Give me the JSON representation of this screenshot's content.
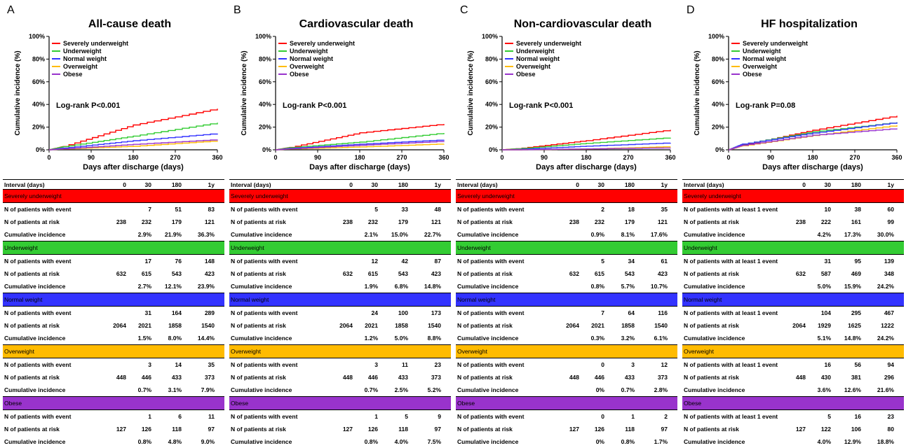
{
  "colors": {
    "severely_underweight": "#ff0000",
    "underweight": "#33cc33",
    "normal_weight": "#3333ff",
    "overweight": "#ffbb00",
    "obese": "#9933cc"
  },
  "table_headers": [
    "Interval (days)",
    "0",
    "30",
    "180",
    "1y"
  ],
  "row_labels": {
    "at_risk": "N of patients at risk",
    "cumulative": "Cumulative incidence"
  },
  "panels": [
    {
      "letter": "A",
      "title": "All-cause death",
      "logrank": "Log-rank P<0.001",
      "event_label": "N of patients with event",
      "groups": [
        {
          "name": "Severely underweight",
          "events": [
            "",
            "7",
            "51",
            "83"
          ],
          "at_risk": [
            "238",
            "232",
            "179",
            "121"
          ],
          "cumulative": [
            "",
            "2.9%",
            "21.9%",
            "36.3%"
          ]
        },
        {
          "name": "Underweight",
          "events": [
            "",
            "17",
            "76",
            "148"
          ],
          "at_risk": [
            "632",
            "615",
            "543",
            "423"
          ],
          "cumulative": [
            "",
            "2.7%",
            "12.1%",
            "23.9%"
          ]
        },
        {
          "name": "Normal weight",
          "events": [
            "",
            "31",
            "164",
            "289"
          ],
          "at_risk": [
            "2064",
            "2021",
            "1858",
            "1540"
          ],
          "cumulative": [
            "",
            "1.5%",
            "8.0%",
            "14.4%"
          ]
        },
        {
          "name": "Overweight",
          "events": [
            "",
            "3",
            "14",
            "35"
          ],
          "at_risk": [
            "448",
            "446",
            "433",
            "373"
          ],
          "cumulative": [
            "",
            "0.7%",
            "3.1%",
            "7.9%"
          ]
        },
        {
          "name": "Obese",
          "events": [
            "",
            "1",
            "6",
            "11"
          ],
          "at_risk": [
            "127",
            "126",
            "118",
            "97"
          ],
          "cumulative": [
            "",
            "0.8%",
            "4.8%",
            "9.0%"
          ]
        }
      ]
    },
    {
      "letter": "B",
      "title": "Cardiovascular death",
      "logrank": "Log-rank P<0.001",
      "event_label": "N of patients with event",
      "groups": [
        {
          "name": "Severely underweight",
          "events": [
            "",
            "5",
            "33",
            "48"
          ],
          "at_risk": [
            "238",
            "232",
            "179",
            "121"
          ],
          "cumulative": [
            "",
            "2.1%",
            "15.0%",
            "22.7%"
          ]
        },
        {
          "name": "Underweight",
          "events": [
            "",
            "12",
            "42",
            "87"
          ],
          "at_risk": [
            "632",
            "615",
            "543",
            "423"
          ],
          "cumulative": [
            "",
            "1.9%",
            "6.8%",
            "14.8%"
          ]
        },
        {
          "name": "Normal weight",
          "events": [
            "",
            "24",
            "100",
            "173"
          ],
          "at_risk": [
            "2064",
            "2021",
            "1858",
            "1540"
          ],
          "cumulative": [
            "",
            "1.2%",
            "5.0%",
            "8.8%"
          ]
        },
        {
          "name": "Overweight",
          "events": [
            "",
            "3",
            "11",
            "23"
          ],
          "at_risk": [
            "448",
            "446",
            "433",
            "373"
          ],
          "cumulative": [
            "",
            "0.7%",
            "2.5%",
            "5.2%"
          ]
        },
        {
          "name": "Obese",
          "events": [
            "",
            "1",
            "5",
            "9"
          ],
          "at_risk": [
            "127",
            "126",
            "118",
            "97"
          ],
          "cumulative": [
            "",
            "0.8%",
            "4.0%",
            "7.5%"
          ]
        }
      ]
    },
    {
      "letter": "C",
      "title": "Non-cardiovascular death",
      "logrank": "Log-rank P<0.001",
      "event_label": "N of patients with event",
      "groups": [
        {
          "name": "Severely underweight",
          "events": [
            "",
            "2",
            "18",
            "35"
          ],
          "at_risk": [
            "238",
            "232",
            "179",
            "121"
          ],
          "cumulative": [
            "",
            "0.9%",
            "8.1%",
            "17.6%"
          ]
        },
        {
          "name": "Underweight",
          "events": [
            "",
            "5",
            "34",
            "61"
          ],
          "at_risk": [
            "632",
            "615",
            "543",
            "423"
          ],
          "cumulative": [
            "",
            "0.8%",
            "5.7%",
            "10.7%"
          ]
        },
        {
          "name": "Normal weight",
          "events": [
            "",
            "7",
            "64",
            "116"
          ],
          "at_risk": [
            "2064",
            "2021",
            "1858",
            "1540"
          ],
          "cumulative": [
            "",
            "0.3%",
            "3.2%",
            "6.1%"
          ]
        },
        {
          "name": "Overweight",
          "events": [
            "",
            "0",
            "3",
            "12"
          ],
          "at_risk": [
            "448",
            "446",
            "433",
            "373"
          ],
          "cumulative": [
            "",
            "0%",
            "0.7%",
            "2.8%"
          ]
        },
        {
          "name": "Obese",
          "events": [
            "",
            "0",
            "1",
            "2"
          ],
          "at_risk": [
            "127",
            "126",
            "118",
            "97"
          ],
          "cumulative": [
            "",
            "0%",
            "0.8%",
            "1.7%"
          ]
        }
      ]
    },
    {
      "letter": "D",
      "title": "HF hospitalization",
      "logrank": "Log-rank P=0.08",
      "event_label": "N of patients with at least 1 event",
      "groups": [
        {
          "name": "Severely underweight",
          "events": [
            "",
            "10",
            "38",
            "60"
          ],
          "at_risk": [
            "238",
            "222",
            "161",
            "99"
          ],
          "cumulative": [
            "",
            "4.2%",
            "17.3%",
            "30.0%"
          ]
        },
        {
          "name": "Underweight",
          "events": [
            "",
            "31",
            "95",
            "139"
          ],
          "at_risk": [
            "632",
            "587",
            "469",
            "348"
          ],
          "cumulative": [
            "",
            "5.0%",
            "15.9%",
            "24.2%"
          ]
        },
        {
          "name": "Normal weight",
          "events": [
            "",
            "104",
            "295",
            "467"
          ],
          "at_risk": [
            "2064",
            "1929",
            "1625",
            "1222"
          ],
          "cumulative": [
            "",
            "5.1%",
            "14.8%",
            "24.2%"
          ]
        },
        {
          "name": "Overweight",
          "events": [
            "",
            "16",
            "56",
            "94"
          ],
          "at_risk": [
            "448",
            "430",
            "381",
            "296"
          ],
          "cumulative": [
            "",
            "3.6%",
            "12.6%",
            "21.6%"
          ]
        },
        {
          "name": "Obese",
          "events": [
            "",
            "5",
            "16",
            "23"
          ],
          "at_risk": [
            "127",
            "122",
            "106",
            "80"
          ],
          "cumulative": [
            "",
            "4.0%",
            "12.9%",
            "18.8%"
          ]
        }
      ]
    }
  ],
  "chart_data": [
    {
      "type": "line",
      "title": "All-cause death",
      "xlabel": "Days after discharge (days)",
      "ylabel": "Cumulative incidence (%)",
      "xlim": [
        0,
        360
      ],
      "ylim": [
        0,
        100
      ],
      "xticks": [
        "0",
        "90",
        "180",
        "270",
        "360"
      ],
      "yticks": [
        "0%",
        "20%",
        "40%",
        "60%",
        "80%",
        "100%"
      ],
      "legend_position": "top-left",
      "x": [
        0,
        30,
        180,
        360
      ],
      "series": [
        {
          "name": "Severely underweight",
          "values": [
            0,
            2.9,
            21.9,
            36.3
          ]
        },
        {
          "name": "Underweight",
          "values": [
            0,
            2.7,
            12.1,
            23.9
          ]
        },
        {
          "name": "Normal weight",
          "values": [
            0,
            1.5,
            8.0,
            14.4
          ]
        },
        {
          "name": "Overweight",
          "values": [
            0,
            0.7,
            3.1,
            7.9
          ]
        },
        {
          "name": "Obese",
          "values": [
            0,
            0.8,
            4.8,
            9.0
          ]
        }
      ]
    },
    {
      "type": "line",
      "title": "Cardiovascular death",
      "xlabel": "Days after discharge (days)",
      "ylabel": "Cumulative incidence (%)",
      "xlim": [
        0,
        360
      ],
      "ylim": [
        0,
        100
      ],
      "xticks": [
        "0",
        "90",
        "180",
        "270",
        "360"
      ],
      "yticks": [
        "0%",
        "20%",
        "40%",
        "60%",
        "80%",
        "100%"
      ],
      "legend_position": "top-left",
      "x": [
        0,
        30,
        180,
        360
      ],
      "series": [
        {
          "name": "Severely underweight",
          "values": [
            0,
            2.1,
            15.0,
            22.7
          ]
        },
        {
          "name": "Underweight",
          "values": [
            0,
            1.9,
            6.8,
            14.8
          ]
        },
        {
          "name": "Normal weight",
          "values": [
            0,
            1.2,
            5.0,
            8.8
          ]
        },
        {
          "name": "Overweight",
          "values": [
            0,
            0.7,
            2.5,
            5.2
          ]
        },
        {
          "name": "Obese",
          "values": [
            0,
            0.8,
            4.0,
            7.5
          ]
        }
      ]
    },
    {
      "type": "line",
      "title": "Non-cardiovascular death",
      "xlabel": "Days after discharge (days)",
      "ylabel": "Cumulative incidence (%)",
      "xlim": [
        0,
        360
      ],
      "ylim": [
        0,
        100
      ],
      "xticks": [
        "0",
        "90",
        "180",
        "270",
        "360"
      ],
      "yticks": [
        "0%",
        "20%",
        "40%",
        "60%",
        "80%",
        "100%"
      ],
      "legend_position": "top-left",
      "x": [
        0,
        30,
        180,
        360
      ],
      "series": [
        {
          "name": "Severely underweight",
          "values": [
            0,
            0.9,
            8.1,
            17.6
          ]
        },
        {
          "name": "Underweight",
          "values": [
            0,
            0.8,
            5.7,
            10.7
          ]
        },
        {
          "name": "Normal weight",
          "values": [
            0,
            0.3,
            3.2,
            6.1
          ]
        },
        {
          "name": "Overweight",
          "values": [
            0,
            0,
            0.7,
            2.8
          ]
        },
        {
          "name": "Obese",
          "values": [
            0,
            0,
            0.8,
            1.7
          ]
        }
      ]
    },
    {
      "type": "line",
      "title": "HF hospitalization",
      "xlabel": "Days after discharge (days)",
      "ylabel": "Cumulative incidence (%)",
      "xlim": [
        0,
        360
      ],
      "ylim": [
        0,
        100
      ],
      "xticks": [
        "0",
        "90",
        "180",
        "270",
        "360"
      ],
      "yticks": [
        "0%",
        "20%",
        "40%",
        "60%",
        "80%",
        "100%"
      ],
      "legend_position": "top-left",
      "x": [
        0,
        30,
        180,
        360
      ],
      "series": [
        {
          "name": "Severely underweight",
          "values": [
            0,
            4.2,
            17.3,
            30.0
          ]
        },
        {
          "name": "Underweight",
          "values": [
            0,
            5.0,
            15.9,
            24.2
          ]
        },
        {
          "name": "Normal weight",
          "values": [
            0,
            5.1,
            14.8,
            24.2
          ]
        },
        {
          "name": "Overweight",
          "values": [
            0,
            3.6,
            12.6,
            21.6
          ]
        },
        {
          "name": "Obese",
          "values": [
            0,
            4.0,
            12.9,
            18.8
          ]
        }
      ]
    }
  ]
}
